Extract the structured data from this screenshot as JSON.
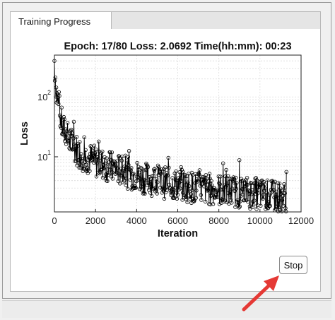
{
  "tabs": [
    {
      "label": "Training Progress"
    }
  ],
  "status": {
    "epoch_text": "Epoch: 17/80 Loss: 2.0692 Time(hh:mm): 00:23",
    "current_epoch": 17,
    "total_epochs": 80,
    "loss": 2.0692,
    "elapsed": "00:23"
  },
  "controls": {
    "stop_label": "Stop"
  },
  "colors": {
    "annotation_arrow": "#e53935",
    "marker": "#000000"
  },
  "chart_data": {
    "type": "line",
    "title": "Epoch: 17/80 Loss: 2.0692 Time(hh:mm): 00:23",
    "xlabel": "Iteration",
    "ylabel": "Loss",
    "xlim": [
      0,
      12000
    ],
    "ylim": [
      1.2,
      500
    ],
    "yscale": "log",
    "grid": true,
    "x_ticks": [
      "0",
      "2000",
      "4000",
      "6000",
      "8000",
      "10000",
      "12000"
    ],
    "y_ticks": [
      {
        "mantissa": "10",
        "exponent": "1",
        "value": 10
      },
      {
        "mantissa": "10",
        "exponent": "2",
        "value": 100
      }
    ],
    "series": [
      {
        "marker": "open-circle",
        "x": [
          0,
          100,
          200,
          300,
          400,
          600,
          800,
          1000,
          1200,
          1500,
          1800,
          2100,
          2500,
          3000,
          3500,
          4000,
          4500,
          5000,
          5500,
          6000,
          6500,
          7000,
          7500,
          8000,
          8500,
          9000,
          9500,
          10000,
          10500,
          11000,
          11300
        ],
        "y": [
          400,
          110,
          70,
          45,
          30,
          22,
          17,
          14,
          12,
          10,
          9,
          8,
          7.2,
          6.3,
          5.5,
          4.9,
          4.3,
          3.9,
          3.6,
          3.4,
          3.2,
          3.0,
          2.9,
          2.8,
          2.7,
          2.6,
          2.5,
          2.4,
          2.2,
          2.1,
          2.07
        ]
      }
    ]
  }
}
